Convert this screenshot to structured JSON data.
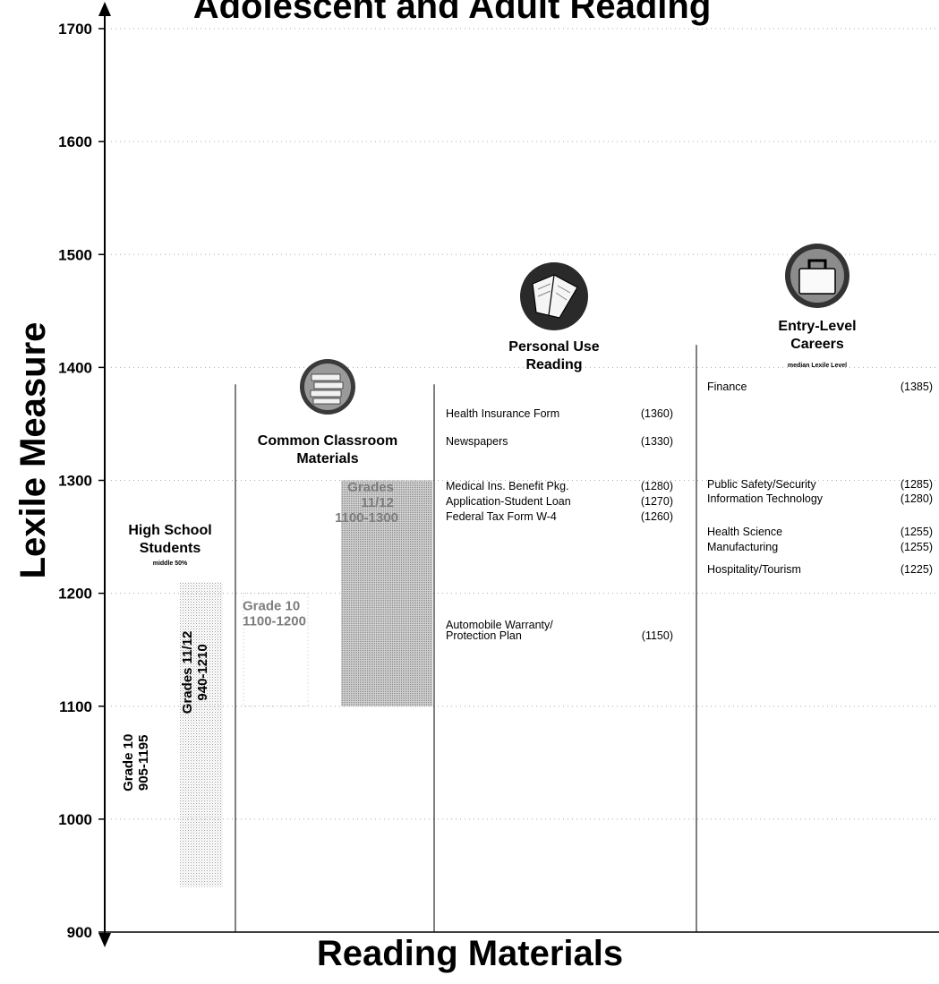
{
  "chart_data": {
    "type": "bar",
    "title": "Adolescent and Adult Reading",
    "xlabel": "Reading Materials",
    "ylabel": "Lexile Measure",
    "ylim": [
      900,
      1700
    ],
    "yticks": [
      900,
      1000,
      1100,
      1200,
      1300,
      1400,
      1500,
      1600,
      1700
    ],
    "grid": true,
    "columns": [
      {
        "key": "students",
        "heading": [
          "High School",
          "Students"
        ],
        "subheading": "middle 50%",
        "bands": [
          {
            "label": "Grade 10",
            "range_label": "905-1195",
            "low": 905,
            "high": 1195
          },
          {
            "label": "Grades 11/12",
            "range_label": "940-1210",
            "low": 940,
            "high": 1210
          }
        ]
      },
      {
        "key": "classroom",
        "heading": [
          "Common Classroom",
          "Materials"
        ],
        "icon": "books-icon",
        "bands": [
          {
            "label": "Grade 10",
            "range_label": "1100-1200",
            "low": 1100,
            "high": 1200
          },
          {
            "label": "Grades 11/12",
            "range_label": "1100-1300",
            "low": 1100,
            "high": 1300
          }
        ]
      },
      {
        "key": "personal",
        "heading": [
          "Personal Use",
          "Reading"
        ],
        "icon": "open-book-icon",
        "items": [
          {
            "label": "Health Insurance Form",
            "value": 1360
          },
          {
            "label": "Newspapers",
            "value": 1330
          },
          {
            "label": "Medical Ins. Benefit Pkg.",
            "value": 1280
          },
          {
            "label": "Application-Student Loan",
            "value": 1270
          },
          {
            "label": "Federal Tax Form W-4",
            "value": 1260
          },
          {
            "label": "Automobile Warranty/ Protection Plan",
            "value": 1150
          }
        ]
      },
      {
        "key": "careers",
        "heading": [
          "Entry-Level",
          "Careers"
        ],
        "subheading": "median Lexile Level",
        "icon": "briefcase-icon",
        "items": [
          {
            "label": "Finance",
            "value": 1385
          },
          {
            "label": "Public Safety/Security",
            "value": 1285
          },
          {
            "label": "Information Technology",
            "value": 1280
          },
          {
            "label": "Health Science",
            "value": 1255
          },
          {
            "label": "Manufacturing",
            "value": 1255
          },
          {
            "label": "Hospitality/Tourism",
            "value": 1225
          }
        ]
      }
    ]
  }
}
